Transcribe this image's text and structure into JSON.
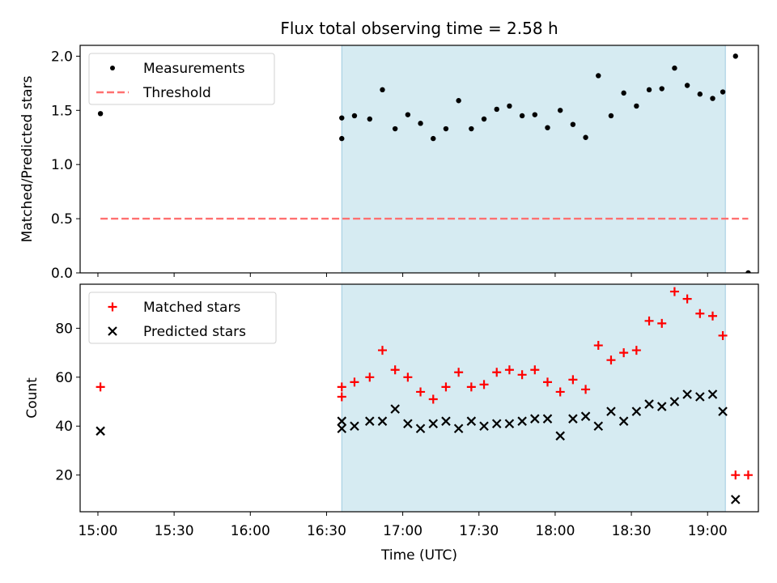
{
  "chart_data": {
    "title": "Flux total observing time = 2.58 h",
    "xlabel": "Time (UTC)",
    "x_ticks": [
      "15:00",
      "15:30",
      "16:00",
      "16:30",
      "17:00",
      "17:30",
      "18:00",
      "18:30",
      "19:00"
    ],
    "xlim": [
      "14:53",
      "19:20"
    ],
    "shaded_region": {
      "start": "16:36",
      "end": "19:07",
      "color": "#add8e6"
    },
    "panels": [
      {
        "type": "scatter",
        "ylabel": "Matched/Predicted stars",
        "ylim": [
          0,
          2.1
        ],
        "y_ticks": [
          "0.0",
          "0.5",
          "1.0",
          "1.5",
          "2.0"
        ],
        "legend_position": "top-left",
        "series": [
          {
            "name": "Measurements",
            "marker": "dot",
            "color": "#000000",
            "points": [
              [
                "15:01",
                1.47
              ],
              [
                "16:36",
                1.43
              ],
              [
                "16:36",
                1.24
              ],
              [
                "16:41",
                1.45
              ],
              [
                "16:47",
                1.42
              ],
              [
                "16:52",
                1.69
              ],
              [
                "16:57",
                1.33
              ],
              [
                "17:02",
                1.46
              ],
              [
                "17:07",
                1.38
              ],
              [
                "17:12",
                1.24
              ],
              [
                "17:17",
                1.33
              ],
              [
                "17:22",
                1.59
              ],
              [
                "17:27",
                1.33
              ],
              [
                "17:32",
                1.42
              ],
              [
                "17:37",
                1.51
              ],
              [
                "17:42",
                1.54
              ],
              [
                "17:47",
                1.45
              ],
              [
                "17:52",
                1.46
              ],
              [
                "17:57",
                1.34
              ],
              [
                "18:02",
                1.5
              ],
              [
                "18:07",
                1.37
              ],
              [
                "18:12",
                1.25
              ],
              [
                "18:17",
                1.82
              ],
              [
                "18:22",
                1.45
              ],
              [
                "18:27",
                1.66
              ],
              [
                "18:32",
                1.54
              ],
              [
                "18:37",
                1.69
              ],
              [
                "18:42",
                1.7
              ],
              [
                "18:47",
                1.89
              ],
              [
                "18:52",
                1.73
              ],
              [
                "18:57",
                1.65
              ],
              [
                "19:02",
                1.61
              ],
              [
                "19:06",
                1.67
              ],
              [
                "19:11",
                2.0
              ],
              [
                "19:16",
                0.0
              ]
            ]
          },
          {
            "name": "Threshold",
            "marker": "dashed-line",
            "color": "#ff7070",
            "points": [
              [
                "15:01",
                0.5
              ],
              [
                "19:16",
                0.5
              ]
            ]
          }
        ]
      },
      {
        "type": "scatter",
        "ylabel": "Count",
        "ylim": [
          5,
          98
        ],
        "y_ticks": [
          "20",
          "40",
          "60",
          "80"
        ],
        "legend_position": "top-left",
        "series": [
          {
            "name": "Matched stars",
            "marker": "plus",
            "color": "#ff0000",
            "points": [
              [
                "15:01",
                56
              ],
              [
                "16:36",
                56
              ],
              [
                "16:36",
                52
              ],
              [
                "16:41",
                58
              ],
              [
                "16:47",
                60
              ],
              [
                "16:52",
                71
              ],
              [
                "16:57",
                63
              ],
              [
                "17:02",
                60
              ],
              [
                "17:07",
                54
              ],
              [
                "17:12",
                51
              ],
              [
                "17:17",
                56
              ],
              [
                "17:22",
                62
              ],
              [
                "17:27",
                56
              ],
              [
                "17:32",
                57
              ],
              [
                "17:37",
                62
              ],
              [
                "17:42",
                63
              ],
              [
                "17:47",
                61
              ],
              [
                "17:52",
                63
              ],
              [
                "17:57",
                58
              ],
              [
                "18:02",
                54
              ],
              [
                "18:07",
                59
              ],
              [
                "18:12",
                55
              ],
              [
                "18:17",
                73
              ],
              [
                "18:22",
                67
              ],
              [
                "18:27",
                70
              ],
              [
                "18:32",
                71
              ],
              [
                "18:37",
                83
              ],
              [
                "18:42",
                82
              ],
              [
                "18:47",
                95
              ],
              [
                "18:52",
                92
              ],
              [
                "18:57",
                86
              ],
              [
                "19:02",
                85
              ],
              [
                "19:06",
                77
              ],
              [
                "19:11",
                20
              ],
              [
                "19:16",
                20
              ]
            ]
          },
          {
            "name": "Predicted stars",
            "marker": "x",
            "color": "#000000",
            "points": [
              [
                "15:01",
                38
              ],
              [
                "16:36",
                42
              ],
              [
                "16:36",
                39
              ],
              [
                "16:41",
                40
              ],
              [
                "16:47",
                42
              ],
              [
                "16:52",
                42
              ],
              [
                "16:57",
                47
              ],
              [
                "17:02",
                41
              ],
              [
                "17:07",
                39
              ],
              [
                "17:12",
                41
              ],
              [
                "17:17",
                42
              ],
              [
                "17:22",
                39
              ],
              [
                "17:27",
                42
              ],
              [
                "17:32",
                40
              ],
              [
                "17:37",
                41
              ],
              [
                "17:42",
                41
              ],
              [
                "17:47",
                42
              ],
              [
                "17:52",
                43
              ],
              [
                "17:57",
                43
              ],
              [
                "18:02",
                36
              ],
              [
                "18:07",
                43
              ],
              [
                "18:12",
                44
              ],
              [
                "18:17",
                40
              ],
              [
                "18:22",
                46
              ],
              [
                "18:27",
                42
              ],
              [
                "18:32",
                46
              ],
              [
                "18:37",
                49
              ],
              [
                "18:42",
                48
              ],
              [
                "18:47",
                50
              ],
              [
                "18:52",
                53
              ],
              [
                "18:57",
                52
              ],
              [
                "19:02",
                53
              ],
              [
                "19:06",
                46
              ],
              [
                "19:11",
                10
              ]
            ]
          }
        ]
      }
    ]
  }
}
